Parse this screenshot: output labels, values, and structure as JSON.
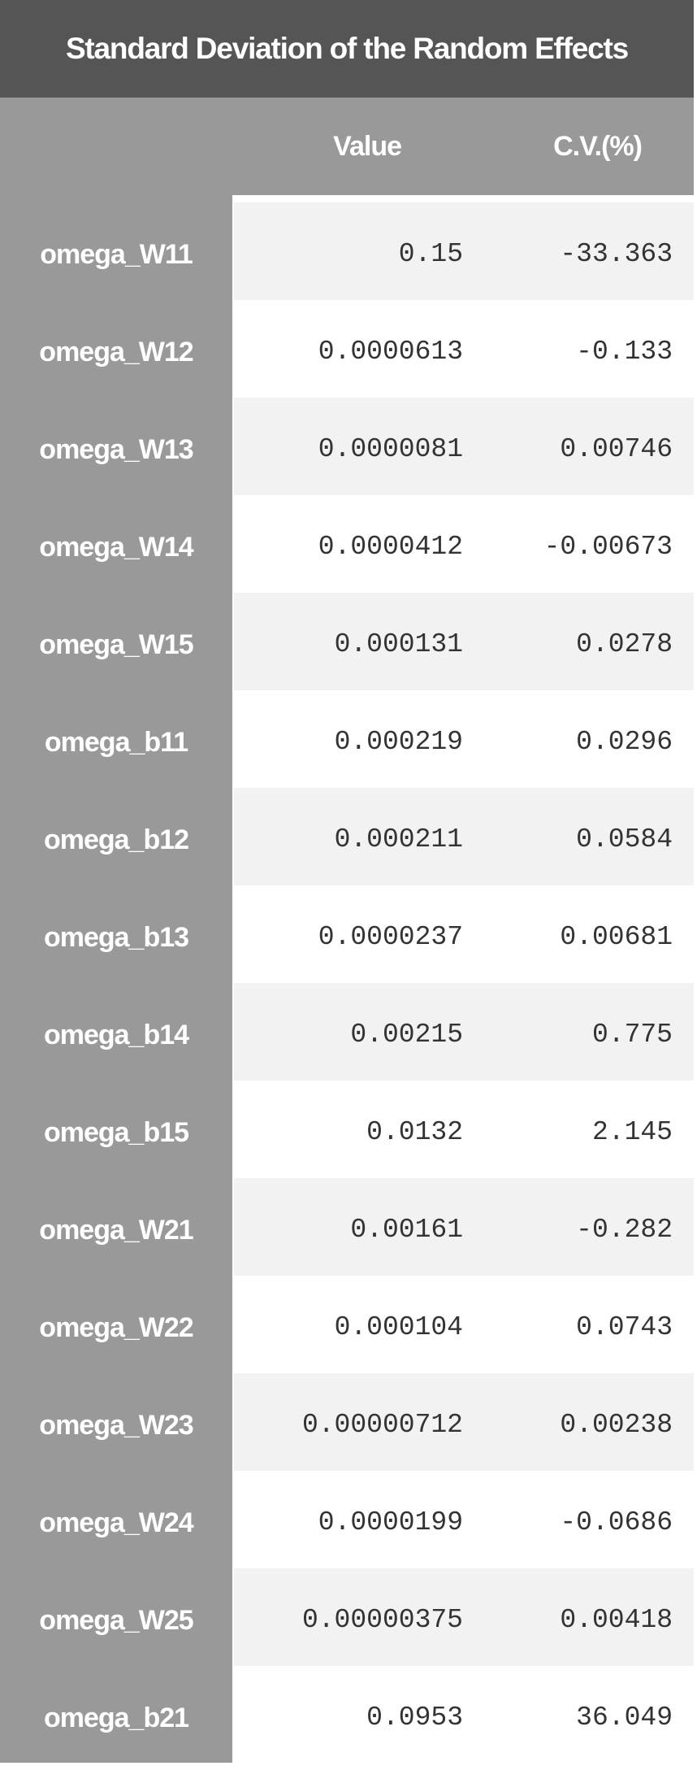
{
  "title": "Standard Deviation of the Random Effects",
  "columns": {
    "value": "Value",
    "cv": "C.V.(%)"
  },
  "rows": [
    {
      "name": "omega_W11",
      "value": "0.15",
      "cv": "-33.363"
    },
    {
      "name": "omega_W12",
      "value": "0.0000613",
      "cv": "-0.133"
    },
    {
      "name": "omega_W13",
      "value": "0.0000081",
      "cv": "0.00746"
    },
    {
      "name": "omega_W14",
      "value": "0.0000412",
      "cv": "-0.00673"
    },
    {
      "name": "omega_W15",
      "value": "0.000131",
      "cv": "0.0278"
    },
    {
      "name": "omega_b11",
      "value": "0.000219",
      "cv": "0.0296"
    },
    {
      "name": "omega_b12",
      "value": "0.000211",
      "cv": "0.0584"
    },
    {
      "name": "omega_b13",
      "value": "0.0000237",
      "cv": "0.00681"
    },
    {
      "name": "omega_b14",
      "value": "0.00215",
      "cv": "0.775"
    },
    {
      "name": "omega_b15",
      "value": "0.0132",
      "cv": "2.145"
    },
    {
      "name": "omega_W21",
      "value": "0.00161",
      "cv": "-0.282"
    },
    {
      "name": "omega_W22",
      "value": "0.000104",
      "cv": "0.0743"
    },
    {
      "name": "omega_W23",
      "value": "0.00000712",
      "cv": "0.00238"
    },
    {
      "name": "omega_W24",
      "value": "0.0000199",
      "cv": "-0.0686"
    },
    {
      "name": "omega_W25",
      "value": "0.00000375",
      "cv": "0.00418"
    },
    {
      "name": "omega_b21",
      "value": "0.0953",
      "cv": "36.049"
    }
  ]
}
